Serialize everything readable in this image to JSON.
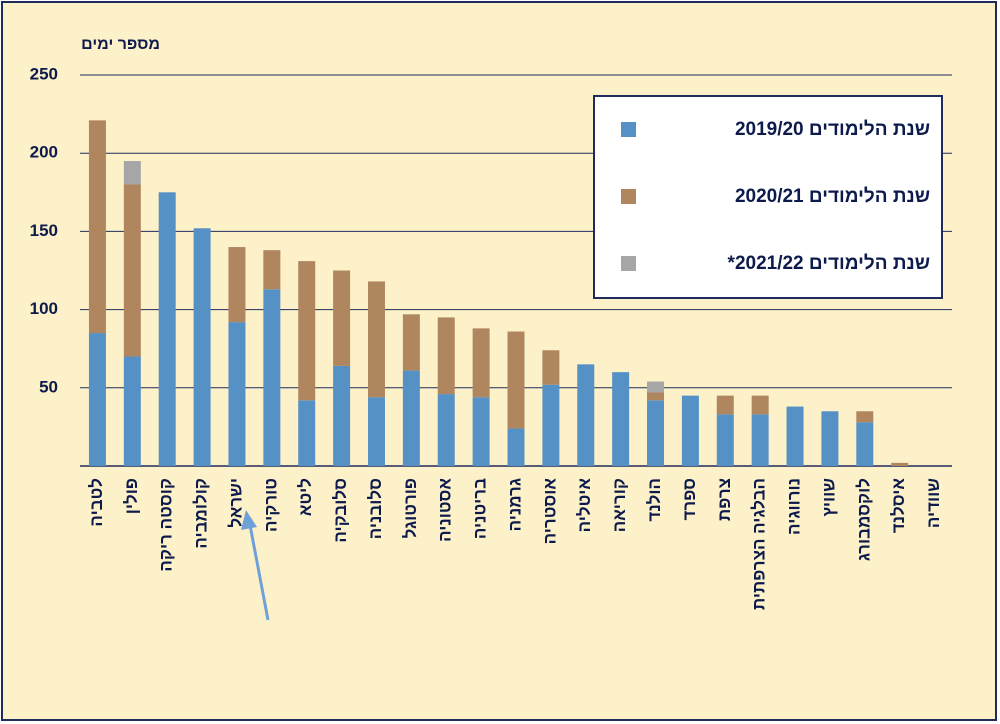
{
  "chart_data": {
    "type": "stacked_bar",
    "y_label": "מספר ימים",
    "categories": [
      "לטביה",
      "פולין",
      "קוסטה ריקה",
      "קולומביה",
      "ישראל",
      "טורקיה",
      "ליטא",
      "סלובקיה",
      "סלובניה",
      "פורטוגל",
      "אסטוניה",
      "בריטניה",
      "גרמניה",
      "אוסטריה",
      "איטליה",
      "קוריאה",
      "הולנד",
      "ספרד",
      "צרפת",
      "הבלגיה הצרפתית",
      "נורווגיה",
      "שוויץ",
      "לוקסמבורג",
      "איסלנד",
      "שוודיה"
    ],
    "series": [
      {
        "name": "שנת הלימודים 2019/20",
        "color": "#5691c6",
        "values": [
          85,
          70,
          175,
          152,
          92,
          113,
          42,
          64,
          44,
          61,
          46,
          44,
          24,
          52,
          65,
          60,
          42,
          45,
          33,
          33,
          38,
          35,
          28,
          0,
          0
        ]
      },
      {
        "name": "שנת הלימודים 2020/21",
        "color": "#b0865f",
        "values": [
          136,
          110,
          0,
          0,
          48,
          25,
          89,
          61,
          74,
          36,
          49,
          44,
          62,
          22,
          0,
          0,
          5,
          0,
          12,
          12,
          0,
          0,
          7,
          2,
          0
        ]
      },
      {
        "name": "שנת הלימודים 2021/22*",
        "color": "#a6a6a6",
        "values": [
          0,
          15,
          0,
          0,
          0,
          0,
          0,
          0,
          0,
          0,
          0,
          0,
          0,
          0,
          0,
          0,
          7,
          0,
          0,
          0,
          0,
          0,
          0,
          0,
          0
        ]
      }
    ],
    "ylim": [
      0,
      250
    ],
    "yticks": [
      0,
      50,
      100,
      150,
      200,
      250
    ],
    "grid": true,
    "legend": "upper right"
  }
}
